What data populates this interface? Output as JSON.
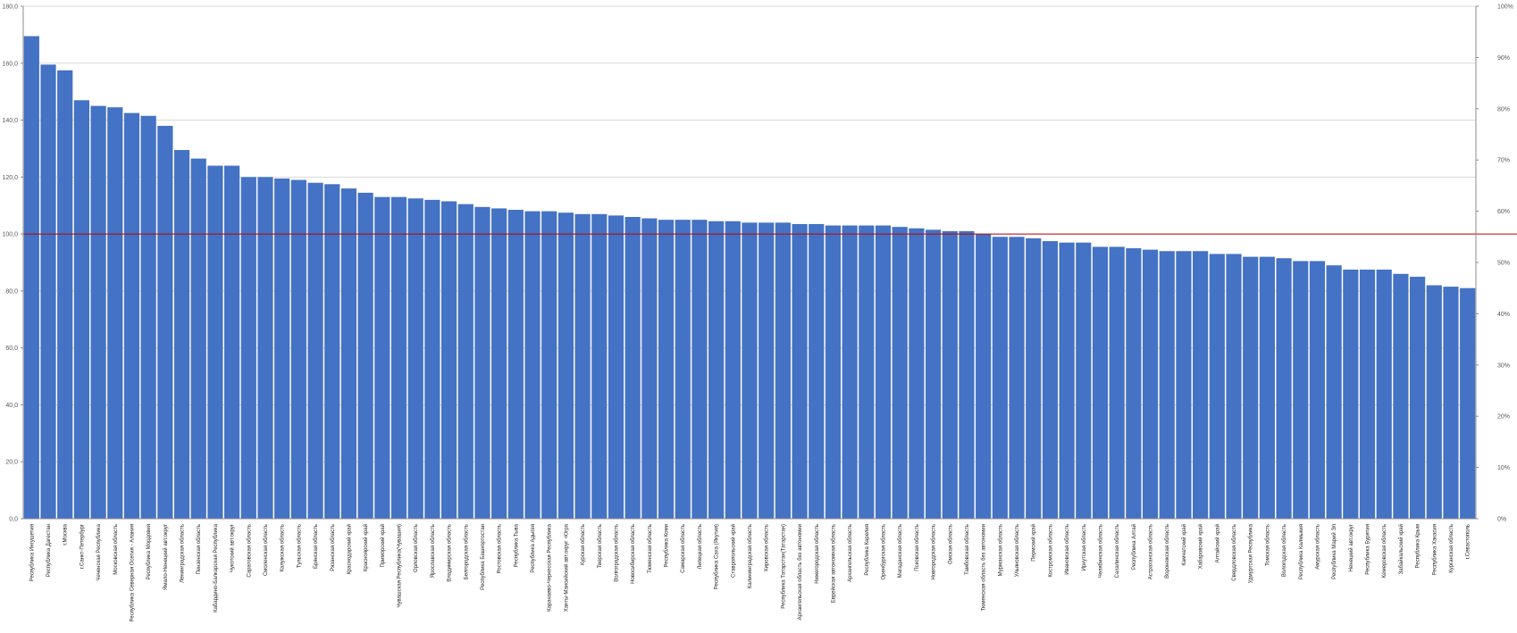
{
  "chart_data": {
    "type": "bar",
    "title": "",
    "xlabel": "",
    "ylabel": "",
    "ylim": [
      0,
      180
    ],
    "y_ticks": [
      "0,0",
      "20,0",
      "40,0",
      "60,0",
      "80,0",
      "100,0",
      "120,0",
      "140,0",
      "160,0",
      "180,0"
    ],
    "y2_ticks": [
      "0%",
      "10%",
      "20%",
      "30%",
      "40%",
      "50%",
      "60%",
      "70%",
      "80%",
      "90%",
      "100%"
    ],
    "reference_line": {
      "value": 100,
      "color": "#c00000"
    },
    "bar_color": "#4472c4",
    "grid": true,
    "legend": "none",
    "categories": [
      "Республика Ингушетия",
      "Республика Дагестан",
      "г.Москва",
      "г.Санкт-Петербург",
      "Чеченская Республика",
      "Московская область",
      "Республика Северная Осетия - Алания",
      "Республика Мордовия",
      "Ямало-Ненецкий авт.округ",
      "Ленинградская область",
      "Пензенская область",
      "Кабардино-Балкарская Республика",
      "Чукотский авт.округ",
      "Саратовская область",
      "Смоленская область",
      "Калужская область",
      "Тульская область",
      "Брянская область",
      "Рязанская область",
      "Краснодарский край",
      "Красноярский край",
      "Приморский край",
      "Чувашская Республика(Чувашия)",
      "Орловская область",
      "Ярославская область",
      "Владимирская область",
      "Белгородская область",
      "Республика Башкортостан",
      "Ростовская область",
      "Республика Тыва",
      "Республика Адыгея",
      "Карачаево-Черкесская Республика",
      "Ханты-Мансийский авт.округ -Югра",
      "Курская область",
      "Тверская область",
      "Волгоградская область",
      "Новосибирская область",
      "Тюменская область",
      "Республика Коми",
      "Самарская область",
      "Липецкая область",
      "Республика Саха (Якутия)",
      "Ставропольский край",
      "Калининградская область",
      "Кировская область",
      "Республика Татарстан(Татарстан)",
      "Архангельская область без автономии",
      "Нижегородская область",
      "Еврейская автономная область",
      "Архангельская область",
      "Республика Карелия",
      "Оренбургская область",
      "Магаданская область",
      "Псковская область",
      "Новгородская область",
      "Омская область",
      "Тамбовская область",
      "Тюменская область без автономии",
      "Мурманская область",
      "Ульяновская область",
      "Пермский край",
      "Костромская область",
      "Ивановская область",
      "Иркутская область",
      "Челябинская область",
      "Сахалинская область",
      "Республика Алтай",
      "Астраханская область",
      "Воронежская область",
      "Камчатский край",
      "Хабаровский край",
      "Алтайский край",
      "Свердловская область",
      "Удмуртская Республика",
      "Томская область",
      "Вологодская область",
      "Республика Калмыкия",
      "Амурская область",
      "Республика Марий Эл",
      "Ненецкий авт.округ",
      "Республика Бурятия",
      "Кемеровская область",
      "Забайкальский край",
      "Республика Крым",
      "Республика Хакасия",
      "Курганская область",
      "г.Севастополь"
    ],
    "values": [
      169.5,
      159.5,
      157.5,
      147.0,
      145.0,
      144.5,
      142.5,
      141.5,
      138.0,
      129.5,
      126.5,
      124.0,
      124.0,
      120.0,
      120.0,
      119.5,
      119.0,
      118.0,
      117.5,
      116.0,
      114.5,
      113.0,
      113.0,
      112.5,
      112.0,
      111.5,
      110.5,
      109.5,
      109.0,
      108.5,
      108.0,
      108.0,
      107.5,
      107.0,
      107.0,
      106.5,
      106.0,
      105.5,
      105.0,
      105.0,
      105.0,
      104.5,
      104.5,
      104.0,
      104.0,
      104.0,
      103.5,
      103.5,
      103.0,
      103.0,
      103.0,
      103.0,
      102.5,
      102.0,
      101.5,
      101.0,
      101.0,
      100.0,
      99.0,
      99.0,
      98.5,
      97.5,
      97.0,
      97.0,
      95.5,
      95.5,
      95.0,
      94.5,
      94.0,
      94.0,
      94.0,
      93.0,
      93.0,
      92.0,
      92.0,
      91.5,
      90.5,
      90.5,
      89.0,
      87.5,
      87.5,
      87.5,
      86.0,
      85.0,
      82.0,
      81.5,
      81.0
    ]
  }
}
